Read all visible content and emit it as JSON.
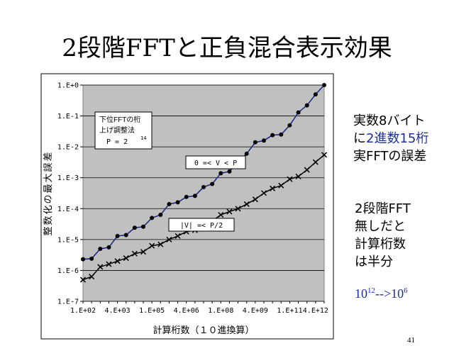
{
  "slide": {
    "title": "2段階FFTと正負混合表示効果",
    "page": "41",
    "note1": [
      "実数8バイト",
      "に",
      "2進数15桁",
      "実FFTの誤差"
    ],
    "note2": [
      "2段階FFT",
      "無しだと",
      "計算桁数",
      "は半分"
    ],
    "note3": [
      "10",
      "12",
      "-->",
      "10",
      "6"
    ]
  },
  "chart_data": {
    "type": "line",
    "log_y": true,
    "y_label": "整数化の最大誤差",
    "x_label": "計算桁数（１０進換算）",
    "annotation": [
      "下位FFTの桁",
      "上げ調整法",
      "P = 2",
      "14"
    ],
    "categories": [
      "1.E+02",
      null,
      null,
      null,
      "4.E+03",
      null,
      null,
      null,
      "1.E+05",
      null,
      null,
      null,
      "4.E+06",
      null,
      null,
      null,
      "1.E+08",
      null,
      null,
      null,
      "4.E+09",
      null,
      null,
      null,
      "1.E+11",
      null,
      null,
      "4.E+12",
      null
    ],
    "ylim": [
      1e-07,
      1
    ],
    "yticks": [
      {
        "value": 1e-07,
        "label": "1.E-7"
      },
      {
        "value": 1e-06,
        "label": "1.E-6"
      },
      {
        "value": 1e-05,
        "label": "1.E-5"
      },
      {
        "value": 0.0001,
        "label": "1.E-4"
      },
      {
        "value": 0.001,
        "label": "1.E-3"
      },
      {
        "value": 0.01,
        "label": "1.E-2"
      },
      {
        "value": 0.1,
        "label": "1.E-1"
      },
      {
        "value": 1,
        "label": "1.E+0"
      }
    ],
    "grid": true,
    "series": [
      {
        "name": "0 =< V < P",
        "color": "#1a237e",
        "marker": "dot",
        "values": [
          2.3e-06,
          2.4e-06,
          5e-06,
          5.6e-06,
          1.3e-05,
          1.4e-05,
          2.4e-05,
          2.6e-05,
          5e-05,
          6.3e-05,
          0.00014,
          0.00016,
          0.00024,
          0.00026,
          0.0005,
          0.00063,
          0.0014,
          0.0016,
          0.0032,
          0.006,
          0.014,
          0.016,
          0.024,
          0.025,
          0.05,
          0.13,
          0.22,
          0.5,
          1
        ]
      },
      {
        "name": "|V| =< P/2",
        "color": "#000000",
        "marker": "cross",
        "values": [
          5e-07,
          6.3e-07,
          1.3e-06,
          1.6e-06,
          2e-06,
          2.5e-06,
          3.5e-06,
          4e-06,
          6.3e-06,
          7e-06,
          1e-05,
          1.3e-05,
          1.8e-05,
          2e-05,
          2.8e-05,
          4e-05,
          6.3e-05,
          8e-05,
          0.0001,
          0.00014,
          0.0002,
          0.00032,
          0.00045,
          0.00056,
          0.0009,
          0.0011,
          0.0018,
          0.0032,
          0.0055
        ]
      }
    ]
  }
}
